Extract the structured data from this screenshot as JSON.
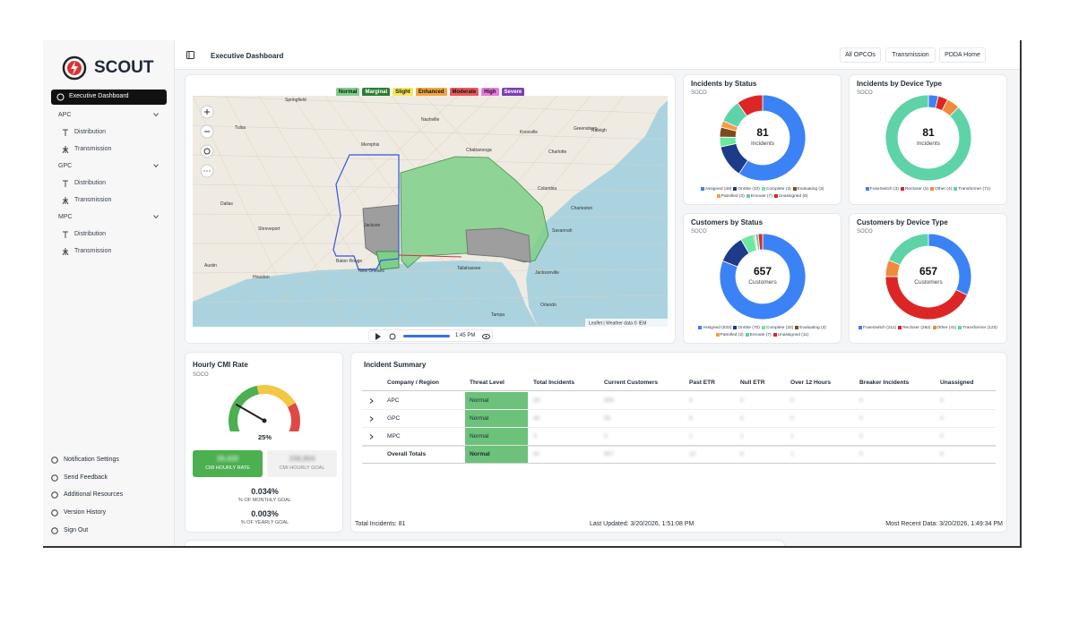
{
  "sidebar": {
    "brand": "SCOUT",
    "active": "Executive Dashboard",
    "groups": [
      {
        "name": "APC",
        "items": [
          "Distribution",
          "Transmission"
        ]
      },
      {
        "name": "GPC",
        "items": [
          "Distribution",
          "Transmission"
        ]
      },
      {
        "name": "MPC",
        "items": [
          "Distribution",
          "Transmission"
        ]
      }
    ],
    "footer_links": [
      "Notification Settings",
      "Send Feedback",
      "Additional Resources",
      "Version History",
      "Sign Out"
    ]
  },
  "header": {
    "title": "Executive Dashboard",
    "buttons": [
      "All OPCOs",
      "Transmission",
      "PDDA Home"
    ]
  },
  "map": {
    "legend": [
      {
        "label": "Normal",
        "color": "#7fcf8a"
      },
      {
        "label": "Marginal",
        "color": "#2e7d32"
      },
      {
        "label": "Slight",
        "color": "#f5e85a"
      },
      {
        "label": "Enhanced",
        "color": "#f0a640"
      },
      {
        "label": "Moderate",
        "color": "#e85a5a"
      },
      {
        "label": "High",
        "color": "#e879e0"
      },
      {
        "label": "Severe",
        "color": "#7b3fb5"
      }
    ],
    "cities": [
      "Springfield",
      "Nashville",
      "Knoxville",
      "Tulsa",
      "Memphis",
      "Chattanooga",
      "Greensboro",
      "Raleigh",
      "Charlotte",
      "Dallas",
      "Jackson",
      "Shreveport",
      "Baton Rouge",
      "New Orleans",
      "Houston",
      "Austin",
      "Tallahassee",
      "Jacksonville",
      "Orlando",
      "Tampa",
      "Charleston",
      "Columbia",
      "Savannah"
    ],
    "attribution": "Leaflet | Weather data © IEM",
    "time": "1:45 PM"
  },
  "chart_data": [
    {
      "type": "pie",
      "title": "Incidents by Status",
      "subtitle": "SOCO",
      "total": 81,
      "total_label": "Incidents",
      "categories": [
        "Assigned (48)",
        "OnSite (10)",
        "Complete (3)",
        "Evaluating (3)",
        "Patrolled (2)",
        "Enroute (7)",
        "Unassigned (8)"
      ],
      "values": [
        48,
        10,
        3,
        3,
        2,
        7,
        8
      ],
      "colors": [
        "#3b82f6",
        "#1e3a8a",
        "#6ee7a0",
        "#7c4a1e",
        "#f59e42",
        "#5fd3a8",
        "#dc2626"
      ]
    },
    {
      "type": "pie",
      "title": "Incidents by Device Type",
      "subtitle": "SOCO",
      "total": 81,
      "total_label": "Incidents",
      "categories": [
        "FuseSwitch (3)",
        "Recloser (3)",
        "Other (4)",
        "Transformer (71)"
      ],
      "values": [
        3,
        3,
        4,
        71
      ],
      "colors": [
        "#3b82f6",
        "#dc2626",
        "#f08a3c",
        "#5fd3a8"
      ]
    },
    {
      "type": "pie",
      "title": "Customers by Status",
      "subtitle": "SOCO",
      "total": 657,
      "total_label": "Customers",
      "categories": [
        "Assigned (532)",
        "OnSite (70)",
        "Complete (32)",
        "Evaluating (3)",
        "Patrolled (2)",
        "Enroute (7)",
        "Unassigned (11)"
      ],
      "values": [
        532,
        70,
        32,
        3,
        2,
        7,
        11
      ],
      "colors": [
        "#3b82f6",
        "#1e3a8a",
        "#6ee7a0",
        "#7c4a1e",
        "#f59e42",
        "#5fd3a8",
        "#dc2626"
      ]
    },
    {
      "type": "pie",
      "title": "Customers by Device Type",
      "subtitle": "SOCO",
      "total": 657,
      "total_label": "Customers",
      "categories": [
        "FuseSwitch (211)",
        "Recloser (282)",
        "Other (41)",
        "Transformer (123)"
      ],
      "values": [
        211,
        282,
        41,
        123
      ],
      "colors": [
        "#3b82f6",
        "#dc2626",
        "#f08a3c",
        "#5fd3a8"
      ]
    },
    {
      "type": "gauge",
      "title": "Hourly CMI Rate",
      "subtitle": "SOCO",
      "value": 25,
      "value_label": "25%",
      "boxes": [
        {
          "value": "39,420",
          "label": "CMI HOURLY RATE"
        },
        {
          "value": "158,804",
          "label": "CMI HOURLY GOAL"
        }
      ],
      "goals": [
        {
          "value": "0.034%",
          "label": "% OF MONTHLY GOAL"
        },
        {
          "value": "0.003%",
          "label": "% OF YEARLY GOAL"
        }
      ]
    }
  ],
  "table": {
    "title": "Incident Summary",
    "columns": [
      "Company / Region",
      "Threat Level",
      "Total Incidents",
      "Current Customers",
      "Past ETR",
      "Null ETR",
      "Over 12 Hours",
      "Breaker Incidents",
      "Unassigned"
    ],
    "rows": [
      [
        "APC",
        "Normal",
        33,
        599,
        3,
        0,
        0,
        0,
        4
      ],
      [
        "GPC",
        "Normal",
        45,
        55,
        8,
        5,
        0,
        0,
        4
      ],
      [
        "MPC",
        "Normal",
        3,
        3,
        1,
        1,
        1,
        0,
        0
      ],
      [
        "Overall Totals",
        "Normal",
        81,
        657,
        12,
        6,
        1,
        0,
        8
      ]
    ],
    "footer": [
      "Total Incidents: 81",
      "Last Updated: 3/20/2026, 1:51:08 PM",
      "Most Recent Data: 3/20/2026, 1:49:34 PM"
    ]
  }
}
